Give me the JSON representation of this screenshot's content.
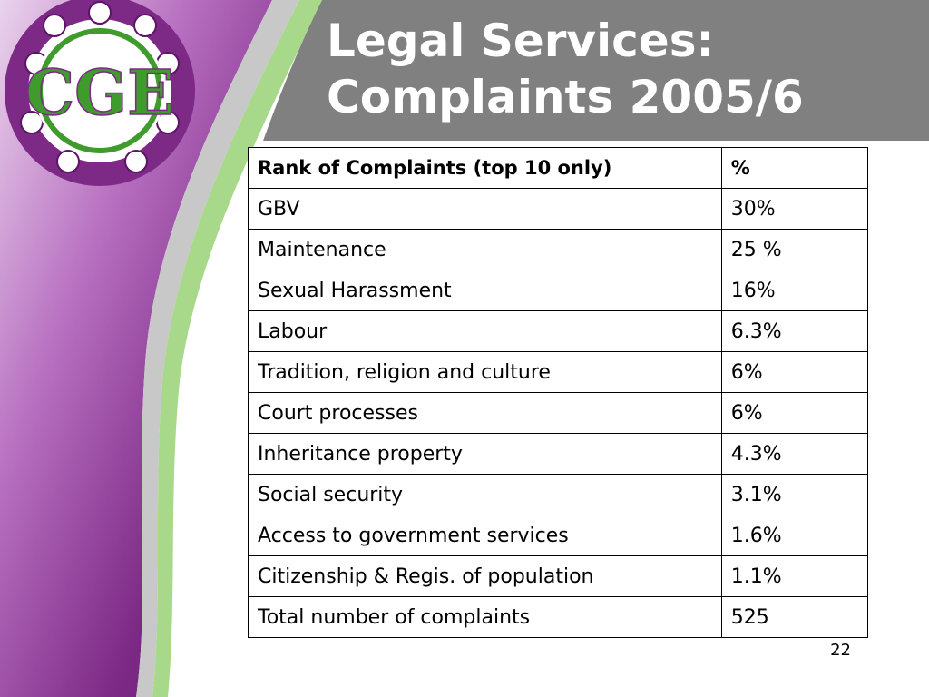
{
  "title": {
    "line1": "Legal Services:",
    "line2": "Complaints 2005/6"
  },
  "logo": {
    "letters": "CGE"
  },
  "table": {
    "headers": [
      "Rank of Complaints (top 10 only)",
      "%"
    ],
    "rows": [
      [
        "GBV",
        "30%"
      ],
      [
        "Maintenance",
        "25 %"
      ],
      [
        "Sexual Harassment",
        "16%"
      ],
      [
        "Labour",
        "6.3%"
      ],
      [
        "Tradition, religion and culture",
        "6%"
      ],
      [
        "Court processes",
        "6%"
      ],
      [
        "Inheritance property",
        "4.3%"
      ],
      [
        "Social security",
        "3.1%"
      ],
      [
        "Access to government services",
        "1.6%"
      ],
      [
        "Citizenship & Regis. of population",
        "1.1%"
      ],
      [
        "Total number of complaints",
        "525"
      ]
    ]
  },
  "slide_number": "22",
  "colors": {
    "title_bar": "#808080",
    "purple": "#7d2a86",
    "green": "#8ec63f",
    "logo_green": "#3f9b2c",
    "white": "#ffffff"
  }
}
